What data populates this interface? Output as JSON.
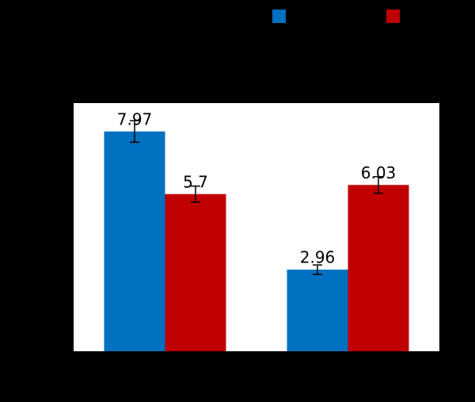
{
  "chart_data": {
    "type": "bar",
    "categories": [
      null,
      null
    ],
    "series": [
      {
        "color": "#0070c0",
        "values": [
          7.97,
          2.96
        ],
        "errors": [
          0.39,
          0.17
        ]
      },
      {
        "color": "#c00000",
        "values": [
          5.7,
          6.03
        ],
        "errors": [
          0.29,
          0.3
        ]
      }
    ],
    "ylim": [
      0,
      9
    ]
  }
}
